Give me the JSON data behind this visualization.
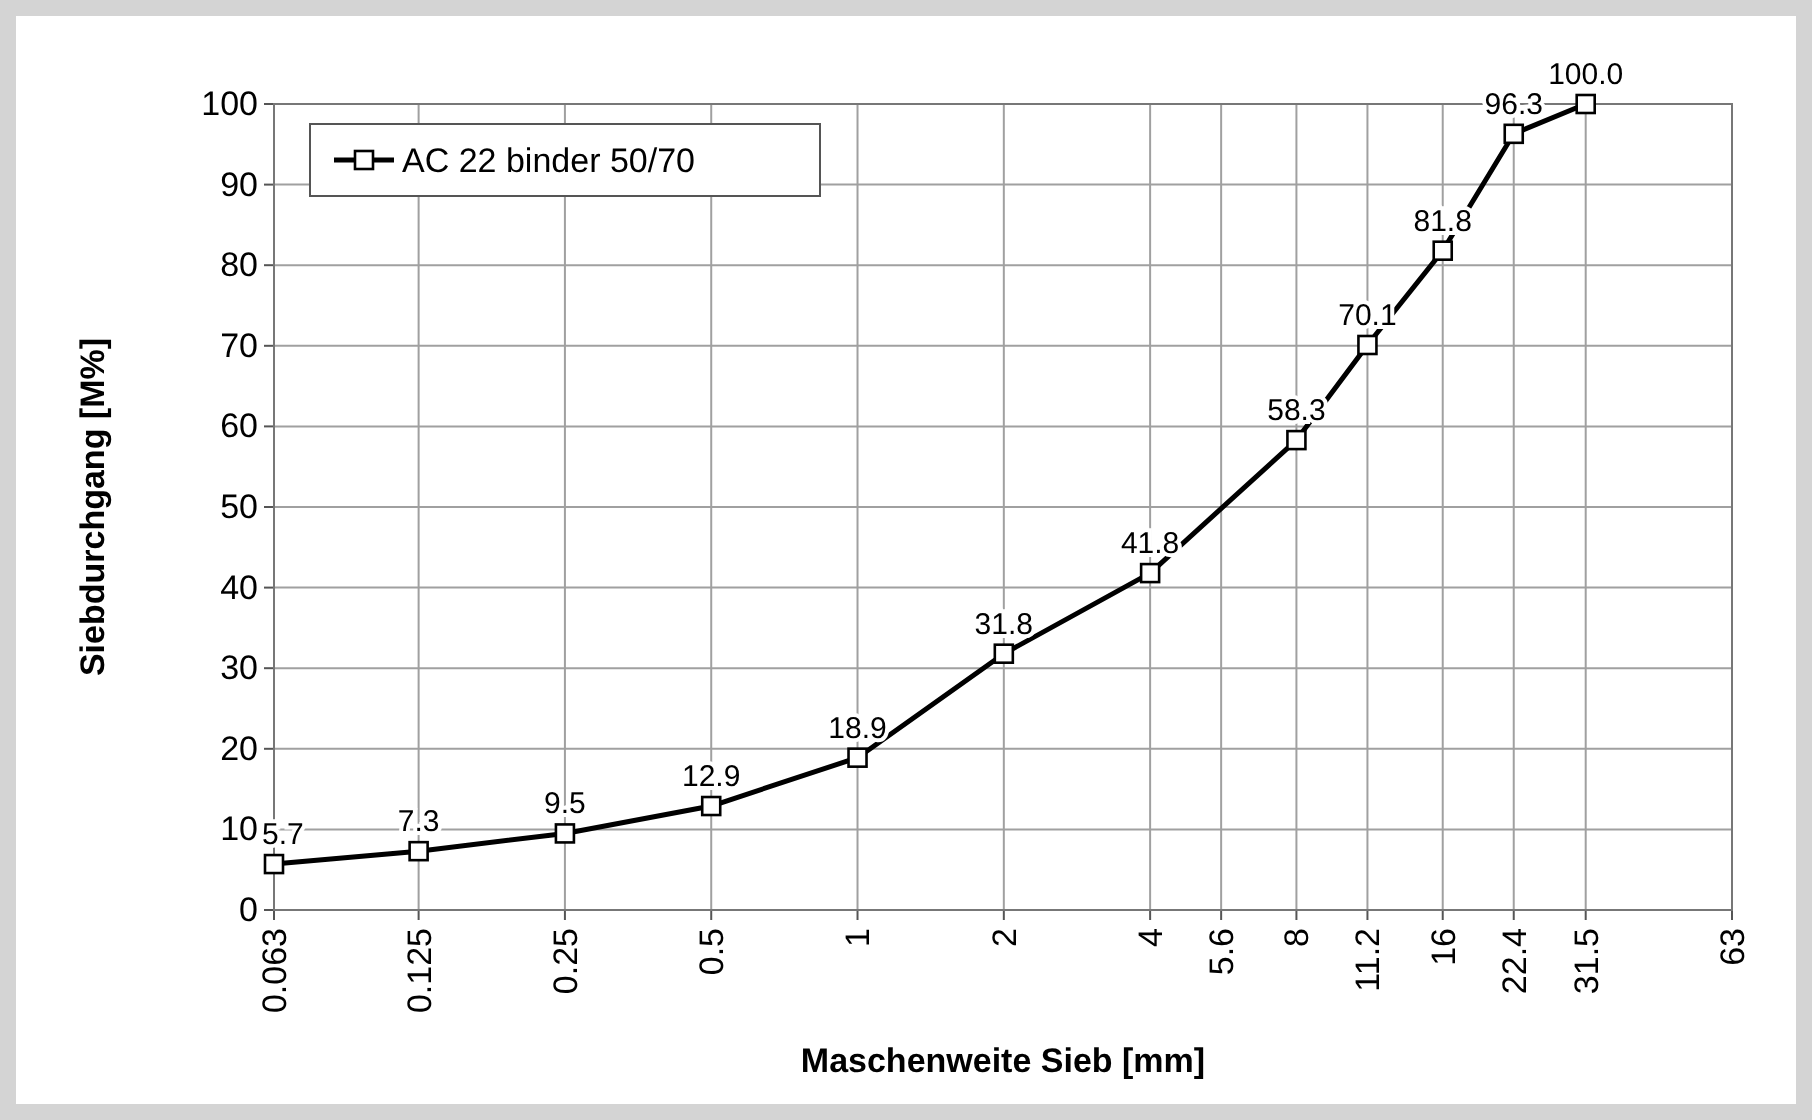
{
  "chart_data": {
    "type": "line",
    "xlabel": "Maschenweite Sieb [mm]",
    "ylabel": "Siebdurchgang [M%]",
    "x": [
      0.063,
      0.125,
      0.25,
      0.5,
      1,
      2,
      4,
      8,
      11.2,
      16,
      22.4,
      31.5
    ],
    "series": [
      {
        "name": "AC 22 binder 50/70",
        "color": "#000000",
        "values": [
          5.7,
          7.3,
          9.5,
          12.9,
          18.9,
          31.8,
          41.8,
          58.3,
          70.1,
          81.8,
          96.3,
          100.0
        ],
        "value_labels": [
          "5.7",
          "7.3",
          "9.5",
          "12.9",
          "18.9",
          "31.8",
          "41.8",
          "58.3",
          "70.1",
          "81.8",
          "96.3",
          "100.0"
        ]
      }
    ],
    "log": "x",
    "xlim": [
      0.063,
      63
    ],
    "xticks": [
      0.063,
      0.125,
      0.25,
      0.5,
      1,
      2,
      4,
      5.6,
      8,
      11.2,
      16,
      22.4,
      31.5,
      63
    ],
    "ylim": [
      0,
      100
    ],
    "yticks": [
      0,
      10,
      20,
      30,
      40,
      50,
      60,
      70,
      80,
      90,
      100
    ],
    "grid": true,
    "legend": "top left",
    "marker": "square",
    "line_style": "solid"
  }
}
